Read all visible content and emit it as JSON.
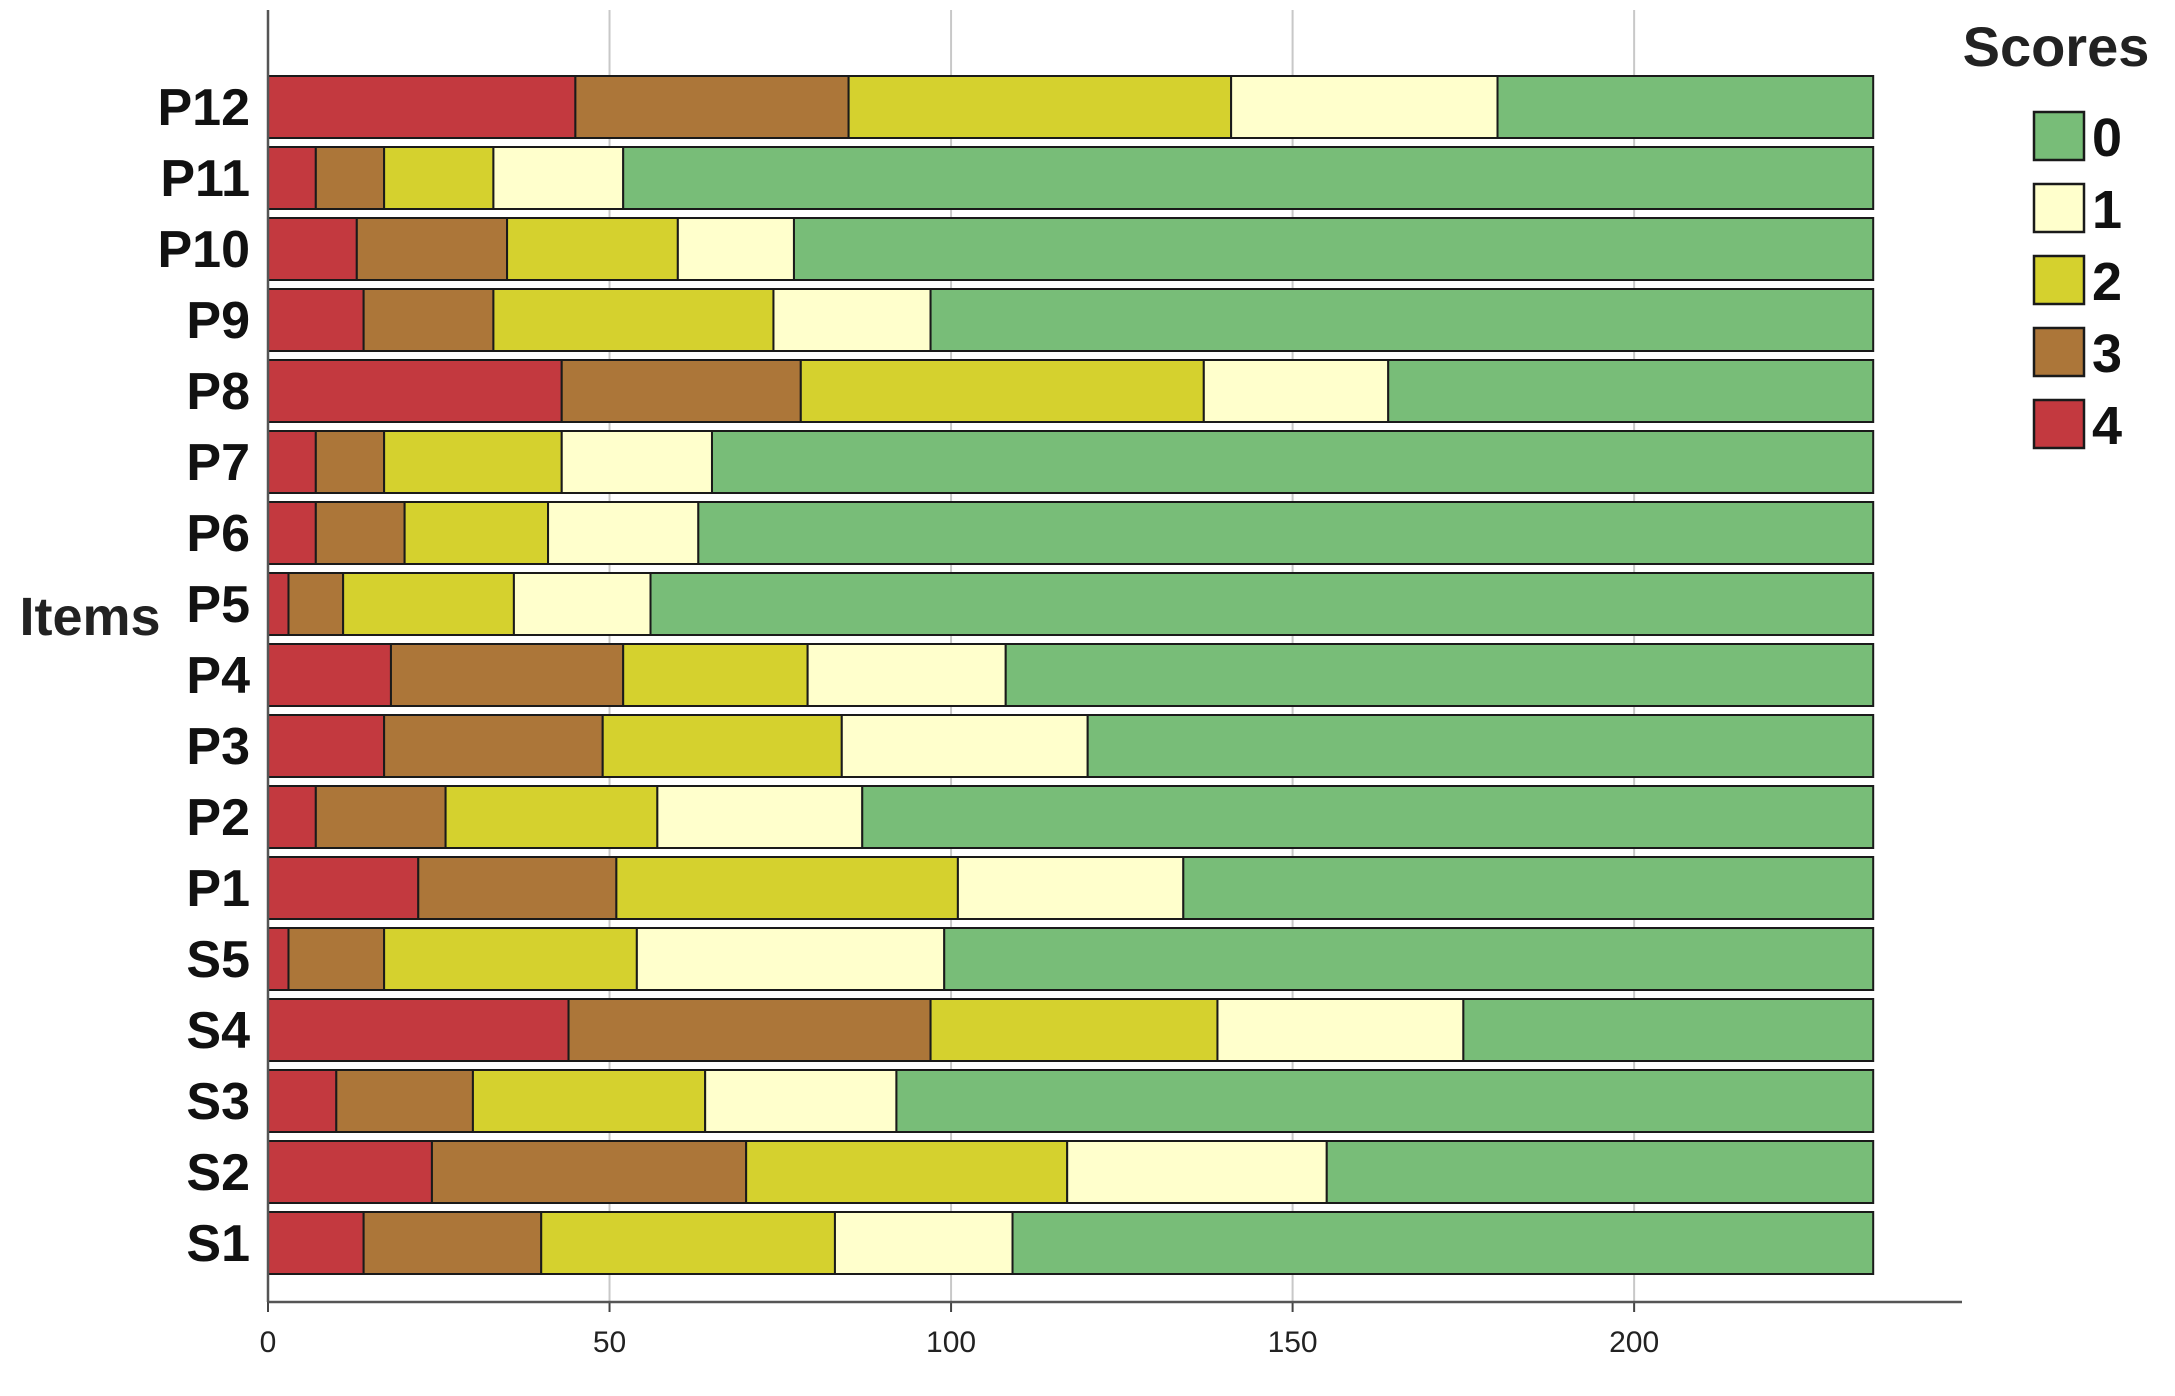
{
  "chart_data": {
    "type": "bar",
    "orientation": "horizontal",
    "stacked": true,
    "ylabel": "Items",
    "xlabel": "",
    "xlim": [
      0,
      248
    ],
    "xticks": [
      0,
      50,
      100,
      150,
      200
    ],
    "grid": true,
    "legend": {
      "title": "Scores",
      "placement": "top-right",
      "entries": [
        "0",
        "1",
        "2",
        "3",
        "4"
      ]
    },
    "stack_order": [
      "4",
      "3",
      "2",
      "1",
      "0"
    ],
    "colors": {
      "0": "#78bd78",
      "1": "#ffffcc",
      "2": "#d5d12e",
      "3": "#ac7639",
      "4": "#c3393f"
    },
    "categories": [
      "P12",
      "P11",
      "P10",
      "P9",
      "P8",
      "P7",
      "P6",
      "P5",
      "P4",
      "P3",
      "P2",
      "P1",
      "S5",
      "S4",
      "S3",
      "S2",
      "S1"
    ],
    "series": [
      {
        "name": "4",
        "values": [
          45,
          7,
          13,
          14,
          43,
          7,
          7,
          3,
          18,
          17,
          7,
          22,
          3,
          44,
          10,
          24,
          14
        ]
      },
      {
        "name": "3",
        "values": [
          40,
          10,
          22,
          19,
          35,
          10,
          13,
          8,
          34,
          32,
          19,
          29,
          14,
          53,
          20,
          46,
          26
        ]
      },
      {
        "name": "2",
        "values": [
          56,
          16,
          25,
          41,
          59,
          26,
          21,
          25,
          27,
          35,
          31,
          50,
          37,
          42,
          34,
          47,
          43
        ]
      },
      {
        "name": "1",
        "values": [
          39,
          19,
          17,
          23,
          27,
          22,
          22,
          20,
          29,
          36,
          30,
          33,
          45,
          36,
          28,
          38,
          26
        ]
      },
      {
        "name": "0",
        "values": [
          55,
          183,
          158,
          138,
          71,
          170,
          172,
          179,
          127,
          115,
          148,
          101,
          136,
          60,
          143,
          80,
          126
        ]
      }
    ]
  }
}
